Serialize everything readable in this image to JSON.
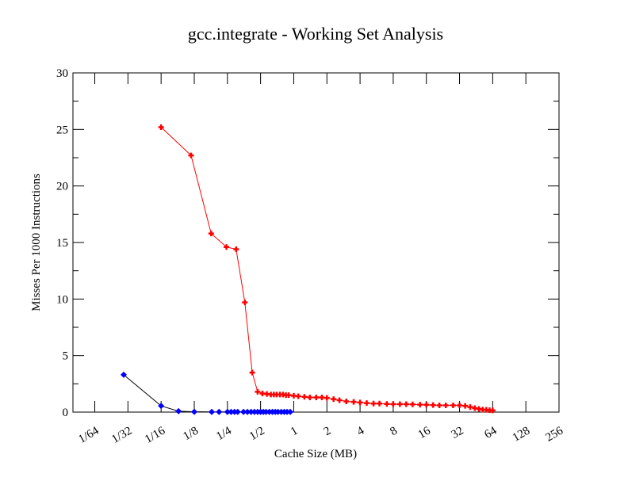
{
  "chart_data": {
    "type": "line",
    "title": "gcc.integrate - Working Set Analysis",
    "xlabel": "Cache Size (MB)",
    "ylabel": "Misses Per 1000 Instructions",
    "xscale": "log2",
    "xlim": [
      0.0099,
      256
    ],
    "ylim": [
      0,
      30
    ],
    "xticks": [
      {
        "v": 0.015625,
        "label": "1/64"
      },
      {
        "v": 0.03125,
        "label": "1/32"
      },
      {
        "v": 0.0625,
        "label": "1/16"
      },
      {
        "v": 0.125,
        "label": "1/8"
      },
      {
        "v": 0.25,
        "label": "1/4"
      },
      {
        "v": 0.5,
        "label": "1/2"
      },
      {
        "v": 1,
        "label": "1"
      },
      {
        "v": 2,
        "label": "2"
      },
      {
        "v": 4,
        "label": "4"
      },
      {
        "v": 8,
        "label": "8"
      },
      {
        "v": 16,
        "label": "16"
      },
      {
        "v": 32,
        "label": "32"
      },
      {
        "v": 64,
        "label": "64"
      },
      {
        "v": 128,
        "label": "128"
      },
      {
        "v": 256,
        "label": "256"
      }
    ],
    "yticks": [
      {
        "v": 0,
        "label": "0"
      },
      {
        "v": 5,
        "label": "5"
      },
      {
        "v": 10,
        "label": "10"
      },
      {
        "v": 15,
        "label": "15"
      },
      {
        "v": 20,
        "label": "20"
      },
      {
        "v": 25,
        "label": "25"
      },
      {
        "v": 30,
        "label": "30"
      }
    ],
    "series": [
      {
        "name": "red",
        "color": "#ff0000",
        "line": "#ff0000",
        "x": [
          0.0625,
          0.117,
          0.178,
          0.245,
          0.3,
          0.36,
          0.42,
          0.47,
          0.52,
          0.57,
          0.62,
          0.66,
          0.7,
          0.75,
          0.8,
          0.85,
          0.9,
          1,
          1.1,
          1.25,
          1.4,
          1.6,
          1.8,
          2,
          2.3,
          2.6,
          3,
          3.5,
          4,
          4.6,
          5.3,
          6,
          7,
          8,
          9.2,
          10.5,
          12,
          14,
          16,
          18.4,
          21,
          24,
          28,
          32,
          36,
          40,
          44,
          48,
          52,
          56,
          60,
          64
        ],
        "y": [
          25.2,
          22.7,
          15.8,
          14.6,
          14.4,
          9.7,
          3.5,
          1.8,
          1.65,
          1.6,
          1.55,
          1.55,
          1.55,
          1.55,
          1.55,
          1.5,
          1.5,
          1.45,
          1.4,
          1.35,
          1.3,
          1.3,
          1.3,
          1.25,
          1.15,
          1.05,
          0.95,
          0.9,
          0.85,
          0.8,
          0.75,
          0.75,
          0.72,
          0.7,
          0.7,
          0.7,
          0.68,
          0.66,
          0.65,
          0.62,
          0.6,
          0.6,
          0.6,
          0.6,
          0.55,
          0.45,
          0.35,
          0.28,
          0.22,
          0.2,
          0.17,
          0.15
        ]
      },
      {
        "name": "blue",
        "color": "#0000ff",
        "line": "#000000",
        "x": [
          0.0286,
          0.0625,
          0.09,
          0.125,
          0.18,
          0.21,
          0.25,
          0.27,
          0.29,
          0.31,
          0.35,
          0.38,
          0.41,
          0.44,
          0.47,
          0.5,
          0.53,
          0.56,
          0.6,
          0.64,
          0.68,
          0.72,
          0.77,
          0.82,
          0.87,
          0.93
        ],
        "y": [
          3.3,
          0.55,
          0.08,
          0.03,
          0.02,
          0.02,
          0.02,
          0.02,
          0.02,
          0.02,
          0.02,
          0.02,
          0.02,
          0.02,
          0.02,
          0.02,
          0.02,
          0.02,
          0.02,
          0.02,
          0.02,
          0.02,
          0.02,
          0.02,
          0.02,
          0.02
        ]
      }
    ]
  }
}
